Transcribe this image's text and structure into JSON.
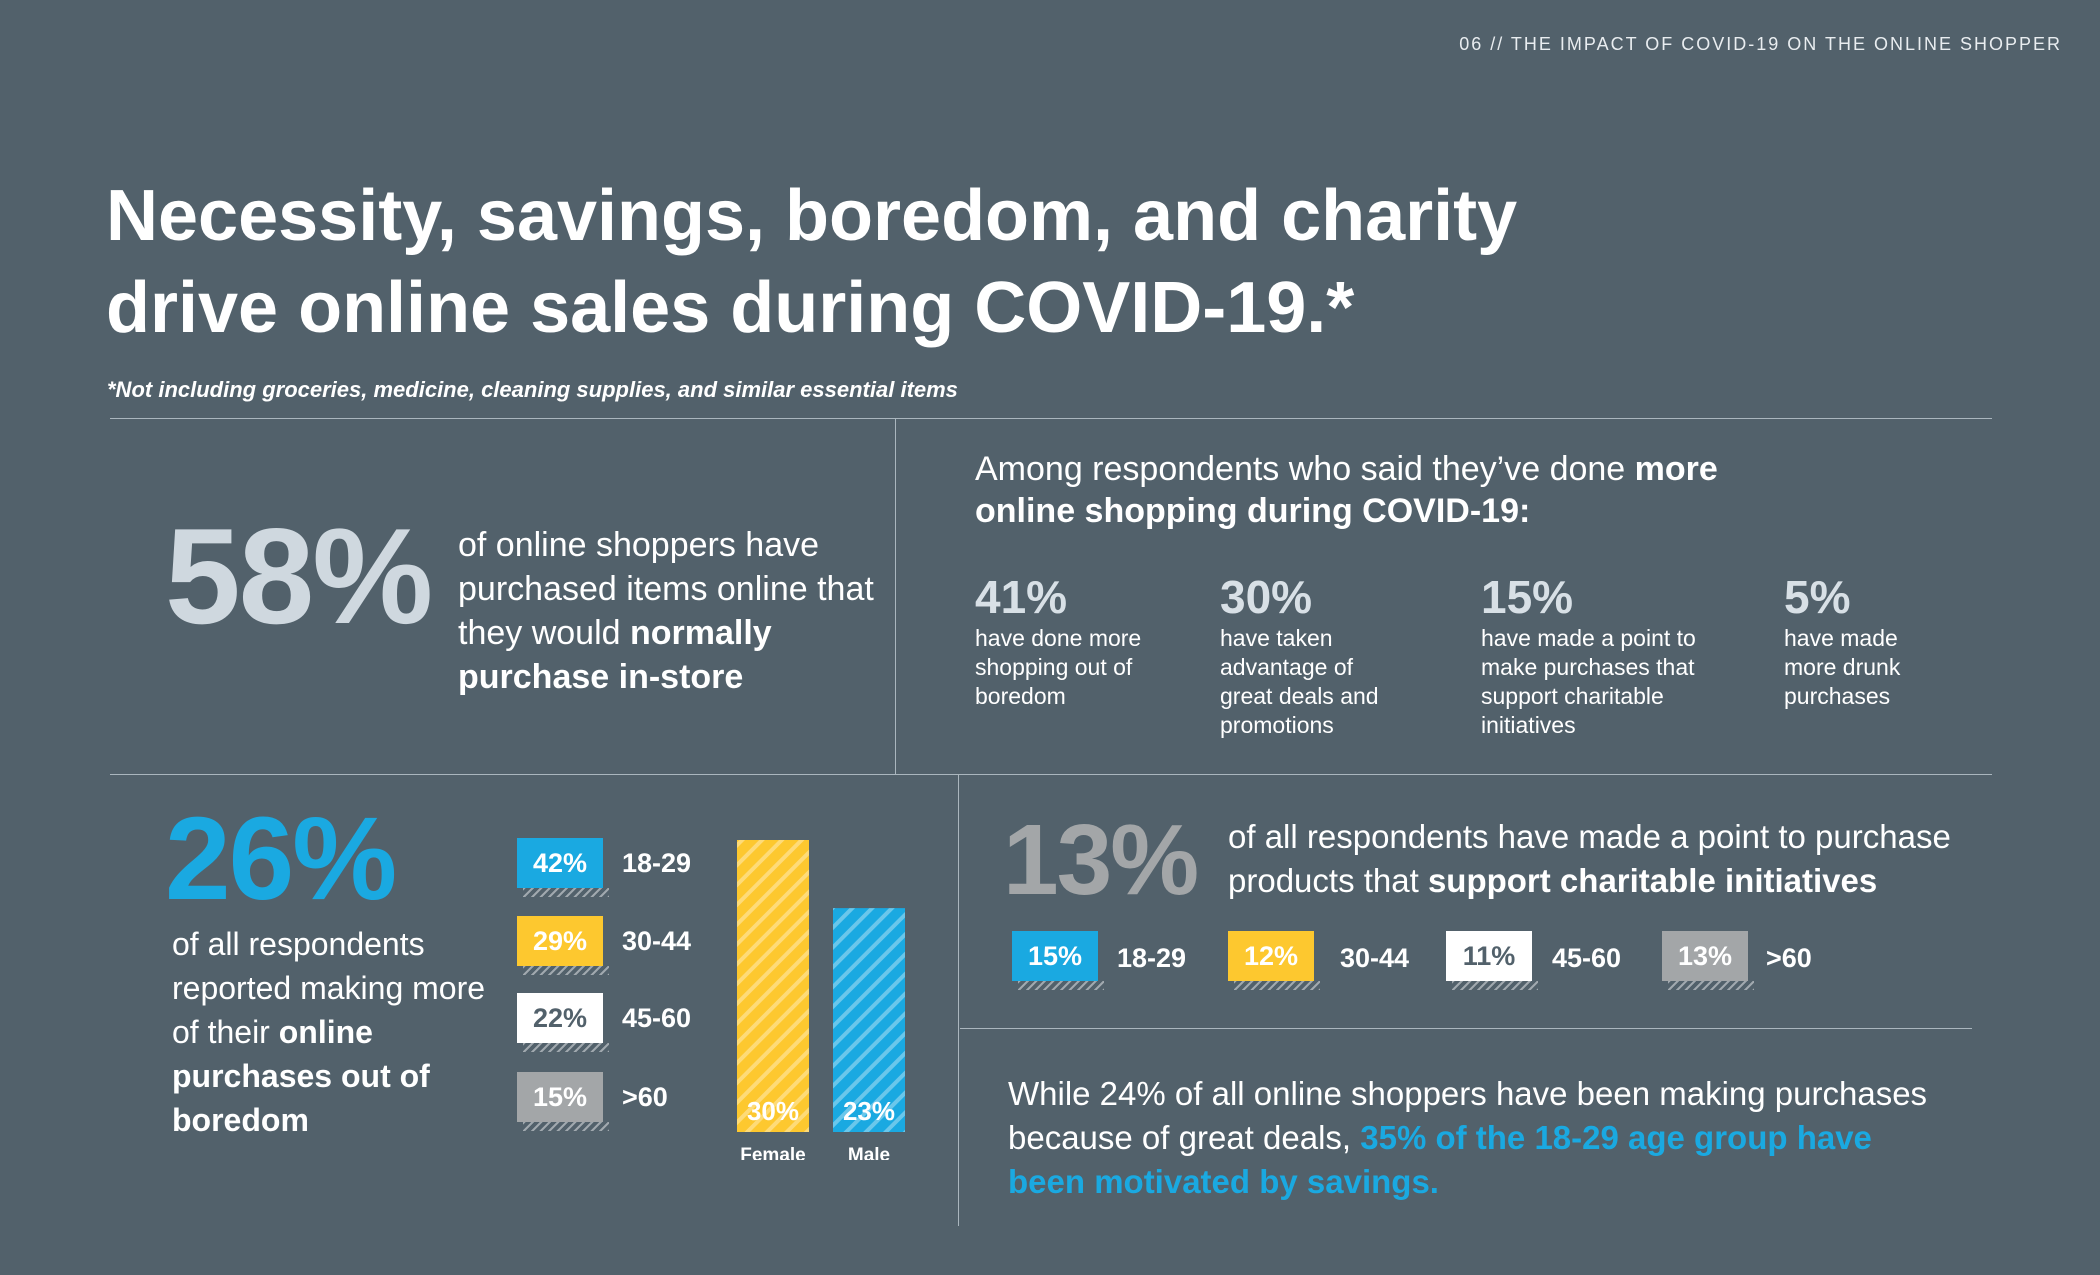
{
  "header": "06 // THE IMPACT OF COVID-19 ON THE ONLINE SHOPPER",
  "title_line1": "Necessity, savings, boredom, and charity",
  "title_line2": "drive online sales during COVID-19.*",
  "subtitle": "*Not including groceries, medicine, cleaning supplies, and similar essential items",
  "instore": {
    "pct": "58%",
    "text_pre": "of online shoppers have purchased items online that they would ",
    "text_bold": "normally purchase in-store"
  },
  "among": {
    "text_pre": "Among respondents who said they’ve done ",
    "text_bold_more": "more",
    "text_bold_rest": "online shopping during COVID-19:",
    "stats": [
      {
        "pct": "41%",
        "desc": "have done more shopping out of boredom"
      },
      {
        "pct": "30%",
        "desc": "have taken advantage of great deals and promotions"
      },
      {
        "pct": "15%",
        "desc": "have made a point to make purchases that support charitable initiatives"
      },
      {
        "pct": "5%",
        "desc": "have made more drunk purchases"
      }
    ]
  },
  "boredom": {
    "pct": "26%",
    "text_pre": "of all respondents reported making more of their ",
    "text_bold": "online purchases out of boredom"
  },
  "charity": {
    "pct": "13%",
    "text_pre": "of all respondents have made a point to purchase products that ",
    "text_bold": "support charitable initiatives"
  },
  "savings": {
    "text_pre": "While 24% of all online shoppers have been making purchases because of great deals, ",
    "text_blue": "35% of the 18-29 age group have been motivated by savings."
  },
  "colors": {
    "blue": "#1aa9e1",
    "yellow": "#fdc82f",
    "white": "#ffffff",
    "gray": "#a3a6a8"
  },
  "chart_data": [
    {
      "type": "bar",
      "categories": [
        "18-29",
        "30-44",
        "45-60",
        ">60"
      ],
      "values": [
        42,
        29,
        22,
        15
      ],
      "value_labels": [
        "42%",
        "29%",
        "22%",
        "15%"
      ],
      "colors": [
        "#1aa9e1",
        "#fdc82f",
        "#ffffff",
        "#a3a6a8"
      ]
    },
    {
      "type": "bar",
      "categories": [
        "Female",
        "Male"
      ],
      "values": [
        30,
        23
      ],
      "value_labels": [
        "30%",
        "23%"
      ],
      "colors": [
        "#fdc82f",
        "#1aa9e1"
      ]
    },
    {
      "type": "bar",
      "categories": [
        "18-29",
        "30-44",
        "45-60",
        ">60"
      ],
      "values": [
        15,
        12,
        11,
        13
      ],
      "value_labels": [
        "15%",
        "12%",
        "11%",
        "13%"
      ],
      "colors": [
        "#1aa9e1",
        "#fdc82f",
        "#ffffff",
        "#a3a6a8"
      ]
    }
  ]
}
